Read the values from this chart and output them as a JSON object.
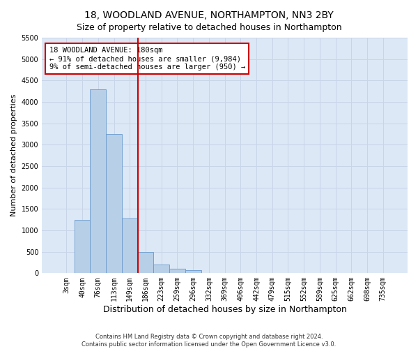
{
  "title": "18, WOODLAND AVENUE, NORTHAMPTON, NN3 2BY",
  "subtitle": "Size of property relative to detached houses in Northampton",
  "xlabel": "Distribution of detached houses by size in Northampton",
  "ylabel": "Number of detached properties",
  "categories": [
    "3sqm",
    "40sqm",
    "76sqm",
    "113sqm",
    "149sqm",
    "186sqm",
    "223sqm",
    "259sqm",
    "296sqm",
    "332sqm",
    "369sqm",
    "406sqm",
    "442sqm",
    "479sqm",
    "515sqm",
    "552sqm",
    "589sqm",
    "625sqm",
    "662sqm",
    "698sqm",
    "735sqm"
  ],
  "values": [
    0,
    1250,
    4300,
    3250,
    1280,
    500,
    200,
    100,
    75,
    0,
    0,
    0,
    0,
    0,
    0,
    0,
    0,
    0,
    0,
    0,
    0
  ],
  "bar_color": "#b8cfe8",
  "bar_edge_color": "#6699cc",
  "vline_x_index": 5,
  "vline_color": "#cc0000",
  "annotation_line1": "18 WOODLAND AVENUE: 180sqm",
  "annotation_line2": "← 91% of detached houses are smaller (9,984)",
  "annotation_line3": "9% of semi-detached houses are larger (950) →",
  "annotation_box_color": "#cc0000",
  "ylim": [
    0,
    5500
  ],
  "yticks": [
    0,
    500,
    1000,
    1500,
    2000,
    2500,
    3000,
    3500,
    4000,
    4500,
    5000,
    5500
  ],
  "grid_color": "#c8d4e8",
  "background_color": "#dce8f5",
  "footer": "Contains HM Land Registry data © Crown copyright and database right 2024.\nContains public sector information licensed under the Open Government Licence v3.0.",
  "title_fontsize": 10,
  "subtitle_fontsize": 9,
  "xlabel_fontsize": 9,
  "ylabel_fontsize": 8,
  "tick_fontsize": 7,
  "ytick_fontsize": 7,
  "annotation_fontsize": 7.5,
  "footer_fontsize": 6
}
